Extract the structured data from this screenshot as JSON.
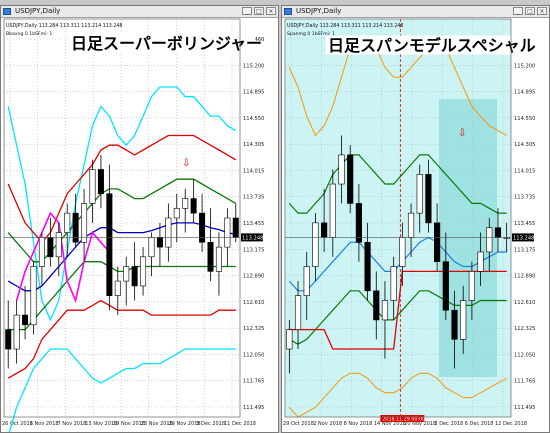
{
  "window_left": {
    "title": "USDJPY,Daily",
    "label": "日足スーパーボリンジャー",
    "ohlc": "USDJPY,Daily  113.284 113.311 113.214 113.248",
    "indicator": "Bbaxng 0 1bSFmi: 1",
    "price_tag": "113.248",
    "chart_data": {
      "type": "candlestick",
      "symbol": "USDJPY",
      "timeframe": "Daily",
      "ylim": [
        111.4,
        115.5
      ],
      "y_ticks": [
        "115.460",
        "115.200",
        "114.895",
        "114.550",
        "114.305",
        "114.015",
        "113.735",
        "113.455",
        "113.175",
        "112.890",
        "112.610",
        "112.325",
        "112.050",
        "111.765",
        "111.495"
      ],
      "x_ticks": [
        "26 Oct 2018",
        "1 Nov 2018",
        "7 Nov 2018",
        "13 Nov 2018",
        "19 Nov 2018",
        "23 Nov 2018",
        "29 Nov 2018",
        "5 Dec 2018",
        "11 Dec 2018"
      ],
      "candles": [
        [
          112.3,
          112.6,
          111.9,
          112.1
        ],
        [
          112.1,
          112.6,
          111.95,
          112.45
        ],
        [
          112.45,
          112.75,
          112.2,
          112.35
        ],
        [
          112.35,
          113.0,
          112.25,
          112.95
        ],
        [
          112.95,
          113.3,
          112.75,
          113.25
        ],
        [
          113.25,
          113.45,
          112.95,
          113.05
        ],
        [
          113.05,
          113.4,
          112.85,
          113.3
        ],
        [
          113.3,
          113.6,
          113.05,
          113.5
        ],
        [
          113.5,
          113.7,
          113.15,
          113.2
        ],
        [
          113.2,
          113.75,
          113.0,
          113.6
        ],
        [
          113.6,
          114.05,
          113.4,
          113.95
        ],
        [
          113.95,
          114.1,
          113.55,
          113.7
        ],
        [
          113.7,
          114.0,
          112.5,
          112.65
        ],
        [
          112.65,
          112.95,
          112.45,
          112.8
        ],
        [
          112.8,
          113.05,
          112.55,
          112.95
        ],
        [
          112.95,
          113.2,
          112.6,
          112.75
        ],
        [
          112.75,
          113.15,
          112.65,
          113.05
        ],
        [
          113.05,
          113.3,
          112.85,
          113.25
        ],
        [
          113.25,
          113.4,
          112.95,
          113.15
        ],
        [
          113.15,
          113.6,
          113.0,
          113.45
        ],
        [
          113.45,
          113.7,
          113.2,
          113.55
        ],
        [
          113.55,
          113.75,
          113.3,
          113.65
        ],
        [
          113.65,
          113.85,
          113.4,
          113.5
        ],
        [
          113.5,
          113.7,
          113.1,
          113.2
        ],
        [
          113.2,
          113.55,
          112.8,
          112.9
        ],
        [
          112.9,
          113.3,
          112.65,
          113.15
        ],
        [
          113.15,
          113.55,
          112.95,
          113.45
        ],
        [
          113.45,
          113.6,
          113.2,
          113.25
        ]
      ],
      "series": [
        {
          "color": "#00e5ff",
          "values": [
            114.6,
            114.2,
            113.8,
            113.2,
            112.6,
            112.4,
            112.6,
            113.1,
            113.6,
            114.0,
            114.4,
            114.6,
            114.5,
            114.3,
            114.2,
            114.3,
            114.5,
            114.7,
            114.8,
            114.8,
            114.8,
            114.7,
            114.7,
            114.6,
            114.5,
            114.5,
            114.4,
            114.35
          ]
        },
        {
          "color": "#e00000",
          "values": [
            113.8,
            113.6,
            113.4,
            113.3,
            113.2,
            113.3,
            113.5,
            113.7,
            113.8,
            113.9,
            114.0,
            114.15,
            114.2,
            114.2,
            114.15,
            114.1,
            114.15,
            114.2,
            114.25,
            114.3,
            114.3,
            114.3,
            114.3,
            114.25,
            114.2,
            114.15,
            114.1,
            114.05
          ]
        },
        {
          "color": "#0a7a0a",
          "values": [
            113.3,
            113.2,
            113.1,
            113.0,
            113.0,
            113.1,
            113.2,
            113.3,
            113.4,
            113.5,
            113.6,
            113.7,
            113.75,
            113.75,
            113.7,
            113.65,
            113.65,
            113.7,
            113.75,
            113.8,
            113.85,
            113.85,
            113.85,
            113.8,
            113.75,
            113.7,
            113.65,
            113.6
          ]
        },
        {
          "color": "#0000cc",
          "values": [
            112.8,
            112.75,
            112.7,
            112.7,
            112.75,
            112.85,
            112.95,
            113.05,
            113.15,
            113.25,
            113.3,
            113.35,
            113.35,
            113.3,
            113.3,
            113.3,
            113.3,
            113.32,
            113.35,
            113.38,
            113.4,
            113.4,
            113.4,
            113.38,
            113.35,
            113.33,
            113.3,
            113.28
          ]
        },
        {
          "color": "#0a7a0a",
          "values": [
            112.3,
            112.3,
            112.3,
            112.4,
            112.5,
            112.6,
            112.7,
            112.8,
            112.9,
            113.0,
            113.0,
            113.0,
            112.95,
            112.9,
            112.9,
            112.95,
            112.95,
            112.95,
            112.95,
            112.95,
            112.95,
            112.95,
            112.95,
            112.95,
            112.95,
            112.95,
            112.95,
            112.95
          ]
        },
        {
          "color": "#e00000",
          "values": [
            111.8,
            111.85,
            111.9,
            112.0,
            112.2,
            112.3,
            112.4,
            112.5,
            112.5,
            112.5,
            112.55,
            112.6,
            112.55,
            112.5,
            112.5,
            112.5,
            112.5,
            112.45,
            112.45,
            112.45,
            112.45,
            112.45,
            112.45,
            112.45,
            112.45,
            112.5,
            112.5,
            112.5
          ]
        },
        {
          "color": "#00e5ff",
          "values": [
            111.2,
            111.5,
            111.7,
            111.9,
            112.0,
            112.1,
            112.1,
            112.1,
            112.0,
            111.9,
            111.8,
            111.75,
            111.8,
            111.85,
            111.9,
            111.9,
            111.95,
            111.95,
            111.95,
            112.0,
            112.05,
            112.1,
            112.1,
            112.1,
            112.1,
            112.1,
            112.1,
            112.1
          ]
        },
        {
          "color": "#ff00ff",
          "values": [
            null,
            112.6,
            112.9,
            113.1,
            113.3,
            113.5,
            113.4,
            112.8,
            112.6,
            113.0,
            113.3,
            113.2,
            113.1,
            null,
            null,
            null,
            null,
            null,
            null,
            null,
            null,
            null,
            null,
            null,
            null,
            null,
            null,
            null
          ]
        }
      ]
    }
  },
  "window_right": {
    "title": "USDJPY,Daily",
    "label": "日足スパンモデルスペシャル",
    "ohlc": "USDJPY,Daily  113.284 113.311 113.214 113.248",
    "indicator": "Spanmg 0 1bSFmi: 1",
    "price_tag": "113.248",
    "date_tag": "2018.11.29 00:00",
    "chart_data": {
      "type": "candlestick",
      "symbol": "USDJPY",
      "timeframe": "Daily",
      "ylim": [
        111.4,
        115.5
      ],
      "y_ticks": [
        "115.460",
        "115.200",
        "114.895",
        "114.550",
        "114.305",
        "114.015",
        "113.735",
        "113.455",
        "113.175",
        "112.890",
        "112.610",
        "112.325",
        "112.050",
        "111.765",
        "111.495"
      ],
      "x_ticks": [
        "29 Oct 2018",
        "2 Nov 2018",
        "8 Nov 2018",
        "14 Nov 2018",
        "20 Nov 2018",
        "3 Dec 2018",
        "6 Dec 2018",
        "12 Dec 2018"
      ],
      "candles": [
        [
          112.1,
          112.4,
          111.85,
          112.3
        ],
        [
          112.3,
          112.8,
          112.1,
          112.65
        ],
        [
          112.65,
          113.1,
          112.4,
          112.95
        ],
        [
          112.95,
          113.5,
          112.8,
          113.4
        ],
        [
          113.4,
          113.75,
          113.1,
          113.25
        ],
        [
          113.25,
          113.95,
          113.05,
          113.8
        ],
        [
          113.8,
          114.3,
          113.6,
          114.1
        ],
        [
          114.1,
          114.2,
          113.5,
          113.6
        ],
        [
          113.6,
          113.8,
          113.0,
          113.2
        ],
        [
          113.2,
          113.4,
          112.6,
          112.7
        ],
        [
          112.7,
          112.9,
          112.2,
          112.4
        ],
        [
          112.4,
          112.8,
          112.0,
          112.6
        ],
        [
          112.6,
          113.05,
          112.4,
          112.95
        ],
        [
          112.95,
          113.4,
          112.75,
          113.25
        ],
        [
          113.25,
          113.6,
          113.05,
          113.5
        ],
        [
          113.5,
          114.0,
          113.3,
          113.9
        ],
        [
          113.9,
          114.05,
          113.3,
          113.4
        ],
        [
          113.4,
          113.6,
          112.9,
          113.0
        ],
        [
          113.0,
          113.3,
          112.4,
          112.5
        ],
        [
          112.5,
          112.7,
          111.9,
          112.2
        ],
        [
          112.2,
          112.75,
          112.05,
          112.6
        ],
        [
          112.6,
          113.0,
          112.4,
          112.9
        ],
        [
          112.9,
          113.3,
          112.75,
          113.1
        ],
        [
          113.1,
          113.45,
          112.9,
          113.35
        ],
        [
          113.35,
          113.55,
          113.1,
          113.25
        ],
        [
          113.25,
          113.4,
          113.1,
          113.25
        ]
      ]
    }
  }
}
